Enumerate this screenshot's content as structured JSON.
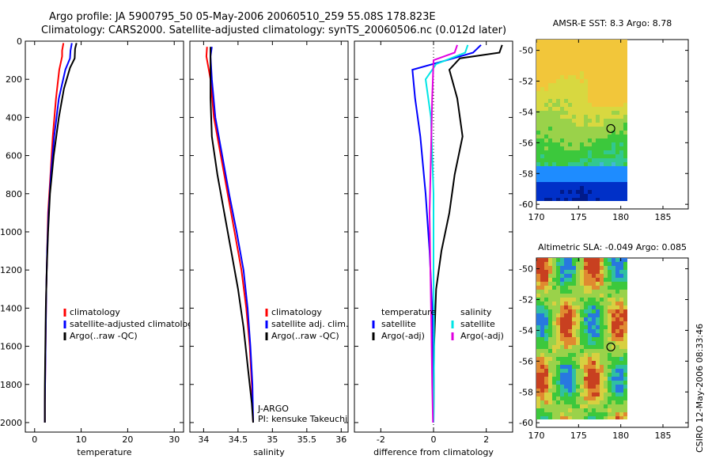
{
  "header": {
    "title_line1": "Argo profile: JA 5900795_50 05-May-2006 20060510_259 55.08S 178.823E",
    "title_line2": "Climatology: CARS2000. Satellite-adjusted climatology: synTS_20060506.nc (0.012d later)"
  },
  "side_credit": "CSIRO 12-May-2006 08:33:46",
  "chart_data": [
    {
      "id": "temperature",
      "type": "line",
      "xlabel": "temperature",
      "ylabel": "",
      "xlim": [
        -2,
        32
      ],
      "ylim": [
        2050,
        0
      ],
      "xticks": [
        0,
        10,
        20,
        30
      ],
      "yticks": [
        0,
        200,
        400,
        600,
        800,
        1000,
        1200,
        1400,
        1600,
        1800,
        2000
      ],
      "legend": [
        "climatology",
        "satellite-adjusted climatology",
        "Argo(..raw -QC)"
      ],
      "legend_position": "lower-center",
      "series": [
        {
          "name": "climatology",
          "color": "#ff0000",
          "points": [
            [
              6.2,
              10
            ],
            [
              5.9,
              50
            ],
            [
              5.9,
              80
            ],
            [
              5.3,
              150
            ],
            [
              4.6,
              300
            ],
            [
              3.9,
              500
            ],
            [
              3.4,
              700
            ],
            [
              2.9,
              900
            ],
            [
              2.7,
              1100
            ],
            [
              2.5,
              1300
            ],
            [
              2.4,
              1500
            ],
            [
              2.3,
              1700
            ],
            [
              2.2,
              1900
            ],
            [
              2.2,
              2000
            ]
          ]
        },
        {
          "name": "satellite-adjusted climatology",
          "color": "#0000ff",
          "points": [
            [
              8.0,
              10
            ],
            [
              7.7,
              50
            ],
            [
              7.6,
              90
            ],
            [
              6.6,
              150
            ],
            [
              5.2,
              300
            ],
            [
              4.2,
              500
            ],
            [
              3.5,
              700
            ],
            [
              3.0,
              900
            ],
            [
              2.7,
              1100
            ],
            [
              2.5,
              1300
            ],
            [
              2.4,
              1500
            ],
            [
              2.3,
              1700
            ],
            [
              2.2,
              1900
            ],
            [
              2.2,
              2000
            ]
          ]
        },
        {
          "name": "Argo(..raw -QC)",
          "color": "#000000",
          "points": [
            [
              9.0,
              10
            ],
            [
              8.7,
              40
            ],
            [
              8.6,
              90
            ],
            [
              7.6,
              140
            ],
            [
              6.3,
              250
            ],
            [
              5.2,
              400
            ],
            [
              4.1,
              600
            ],
            [
              3.3,
              800
            ],
            [
              2.9,
              1000
            ],
            [
              2.6,
              1200
            ],
            [
              2.4,
              1400
            ],
            [
              2.3,
              1600
            ],
            [
              2.2,
              1800
            ],
            [
              2.2,
              2000
            ]
          ]
        }
      ]
    },
    {
      "id": "salinity",
      "type": "line",
      "xlabel": "salinity",
      "ylabel": "",
      "xlim": [
        33.8,
        36.1
      ],
      "ylim": [
        2050,
        0
      ],
      "xticks": [
        34,
        34.5,
        35,
        35.5,
        36
      ],
      "yticks": [],
      "legend": [
        "climatology",
        "satellite adj. clim.",
        "Argo(..raw -QC)"
      ],
      "legend_position": "lower-center",
      "annotations": [
        "J-ARGO",
        "PI: kensuke Takeuchi"
      ],
      "series": [
        {
          "name": "climatology",
          "color": "#ff0000",
          "points": [
            [
              34.05,
              30
            ],
            [
              34.04,
              80
            ],
            [
              34.1,
              200
            ],
            [
              34.15,
              400
            ],
            [
              34.25,
              600
            ],
            [
              34.35,
              800
            ],
            [
              34.45,
              1000
            ],
            [
              34.55,
              1200
            ],
            [
              34.62,
              1400
            ],
            [
              34.67,
              1600
            ],
            [
              34.7,
              1800
            ],
            [
              34.72,
              2000
            ]
          ]
        },
        {
          "name": "satellite adj. clim.",
          "color": "#0000ff",
          "points": [
            [
              34.12,
              30
            ],
            [
              34.1,
              80
            ],
            [
              34.12,
              200
            ],
            [
              34.17,
              400
            ],
            [
              34.27,
              600
            ],
            [
              34.37,
              800
            ],
            [
              34.48,
              1000
            ],
            [
              34.58,
              1200
            ],
            [
              34.64,
              1400
            ],
            [
              34.68,
              1600
            ],
            [
              34.71,
              1800
            ],
            [
              34.72,
              2000
            ]
          ]
        },
        {
          "name": "Argo(..raw -QC)",
          "color": "#000000",
          "points": [
            [
              34.1,
              30
            ],
            [
              34.1,
              100
            ],
            [
              34.1,
              300
            ],
            [
              34.12,
              500
            ],
            [
              34.2,
              700
            ],
            [
              34.3,
              900
            ],
            [
              34.4,
              1100
            ],
            [
              34.5,
              1300
            ],
            [
              34.58,
              1500
            ],
            [
              34.64,
              1700
            ],
            [
              34.7,
              1900
            ],
            [
              34.72,
              2000
            ]
          ]
        }
      ]
    },
    {
      "id": "difference",
      "type": "line",
      "xlabel": "difference from climatology",
      "ylabel": "",
      "xlim": [
        -3,
        3
      ],
      "ylim": [
        2050,
        0
      ],
      "xticks": [
        -2,
        0,
        2
      ],
      "yticks": [],
      "legend": [
        "temperature",
        "satellite",
        "Argo(-adj)",
        "salinity",
        "satellite",
        "Argo(-adj)"
      ],
      "legend_position": "lower-center",
      "series": [
        {
          "name": "temperature satellite",
          "color": "#0000ff",
          "points": [
            [
              1.8,
              20
            ],
            [
              1.5,
              60
            ],
            [
              0.5,
              100
            ],
            [
              -0.8,
              150
            ],
            [
              -0.7,
              300
            ],
            [
              -0.5,
              500
            ],
            [
              -0.3,
              800
            ],
            [
              -0.15,
              1100
            ],
            [
              -0.05,
              1400
            ],
            [
              -0.02,
              1700
            ],
            [
              0,
              2000
            ]
          ]
        },
        {
          "name": "temperature Argo(-adj)",
          "color": "#000000",
          "points": [
            [
              2.6,
              20
            ],
            [
              2.5,
              60
            ],
            [
              1.0,
              90
            ],
            [
              0.6,
              150
            ],
            [
              0.9,
              300
            ],
            [
              1.1,
              500
            ],
            [
              0.8,
              700
            ],
            [
              0.6,
              900
            ],
            [
              0.3,
              1100
            ],
            [
              0.1,
              1300
            ],
            [
              0.02,
              1600
            ],
            [
              0,
              2000
            ]
          ]
        },
        {
          "name": "salinity satellite",
          "color": "#00e5e5",
          "points": [
            [
              1.3,
              20
            ],
            [
              1.2,
              60
            ],
            [
              0.1,
              120
            ],
            [
              -0.3,
              200
            ],
            [
              -0.1,
              400
            ],
            [
              0,
              800
            ],
            [
              0,
              1200
            ],
            [
              0.02,
              1600
            ],
            [
              0,
              2000
            ]
          ]
        },
        {
          "name": "salinity Argo(-adj)",
          "color": "#e000e0",
          "points": [
            [
              0.9,
              20
            ],
            [
              0.8,
              60
            ],
            [
              0.0,
              100
            ],
            [
              -0.05,
              300
            ],
            [
              -0.1,
              600
            ],
            [
              -0.15,
              900
            ],
            [
              -0.12,
              1200
            ],
            [
              -0.08,
              1500
            ],
            [
              -0.05,
              1800
            ],
            [
              -0.02,
              2000
            ]
          ]
        }
      ]
    },
    {
      "id": "amsre_sst",
      "type": "heatmap",
      "title": "AMSR-E SST: 8.3  Argo: 8.78",
      "xlim": [
        170,
        188
      ],
      "ylim": [
        -60.3,
        -49.3
      ],
      "xticks": [
        170,
        175,
        180,
        185
      ],
      "yticks": [
        -50,
        -52,
        -54,
        -56,
        -58,
        -60
      ],
      "marker": [
        178.823,
        -55.08
      ]
    },
    {
      "id": "altimetric_sla",
      "type": "heatmap",
      "title": "Altimetric SLA: -0.049  Argo: 0.085",
      "xlim": [
        170,
        188
      ],
      "ylim": [
        -60.3,
        -49.3
      ],
      "xticks": [
        170,
        175,
        180,
        185
      ],
      "yticks": [
        -50,
        -52,
        -54,
        -56,
        -58,
        -60
      ],
      "marker": [
        178.823,
        -55.08
      ]
    }
  ]
}
